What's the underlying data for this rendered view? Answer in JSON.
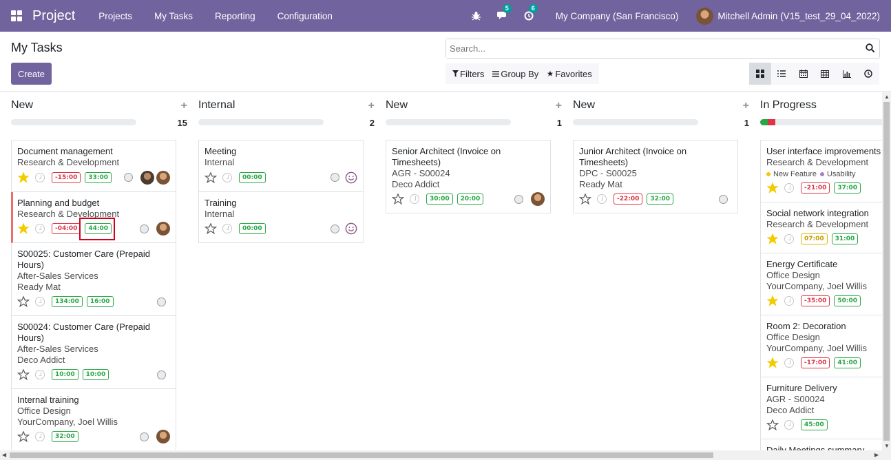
{
  "navbar": {
    "brand": "Project",
    "menu": [
      "Projects",
      "My Tasks",
      "Reporting",
      "Configuration"
    ],
    "messages_count": "5",
    "activities_count": "6",
    "company": "My Company (San Francisco)",
    "user": "Mitchell Admin (V15_test_29_04_2022)"
  },
  "control_panel": {
    "title": "My Tasks",
    "create_label": "Create",
    "search_placeholder": "Search...",
    "filters_label": "Filters",
    "groupby_label": "Group By",
    "favorites_label": "Favorites",
    "active_view": "kanban"
  },
  "columns": [
    {
      "title": "New",
      "count": "15",
      "cards": [
        {
          "title": "Document management",
          "lines": [
            "Research & Development"
          ],
          "starred": true,
          "tags": [
            {
              "t": "-15:00",
              "c": "r"
            },
            {
              "t": "33:00",
              "c": "g"
            }
          ],
          "avatars": 2
        },
        {
          "title": "Planning and budget",
          "lines": [
            "Research & Development"
          ],
          "starred": true,
          "tags": [
            {
              "t": "-04:00",
              "c": "r"
            },
            {
              "t": "44:00",
              "c": "g"
            }
          ],
          "avatars": 1,
          "red_edge": true
        },
        {
          "title": "S00025: Customer Care (Prepaid Hours)",
          "lines": [
            "After-Sales Services",
            "Ready Mat"
          ],
          "starred": false,
          "tags": [
            {
              "t": "134:00",
              "c": "g"
            },
            {
              "t": "16:00",
              "c": "g"
            }
          ],
          "avatars": 0
        },
        {
          "title": "S00024: Customer Care (Prepaid Hours)",
          "lines": [
            "After-Sales Services",
            "Deco Addict"
          ],
          "starred": false,
          "tags": [
            {
              "t": "10:00",
              "c": "g"
            },
            {
              "t": "10:00",
              "c": "g"
            }
          ],
          "avatars": 0
        },
        {
          "title": "Internal training",
          "lines": [
            "Office Design",
            "YourCompany, Joel Willis"
          ],
          "starred": false,
          "tags": [
            {
              "t": "32:00",
              "c": "g"
            }
          ],
          "avatars": 1
        }
      ]
    },
    {
      "title": "Internal",
      "count": "2",
      "cards": [
        {
          "title": "Meeting",
          "lines": [
            "Internal"
          ],
          "starred": false,
          "tags": [
            {
              "t": "00:00",
              "c": "g"
            }
          ],
          "smile": true
        },
        {
          "title": "Training",
          "lines": [
            "Internal"
          ],
          "starred": false,
          "tags": [
            {
              "t": "00:00",
              "c": "g"
            }
          ],
          "smile": true
        }
      ]
    },
    {
      "title": "New",
      "count": "1",
      "cards": [
        {
          "title": "Senior Architect (Invoice on Timesheets)",
          "lines": [
            "AGR - S00024",
            "Deco Addict"
          ],
          "starred": false,
          "tags": [
            {
              "t": "30:00",
              "c": "g"
            },
            {
              "t": "20:00",
              "c": "g"
            }
          ],
          "avatars": 1
        }
      ]
    },
    {
      "title": "New",
      "count": "1",
      "cards": [
        {
          "title": "Junior Architect (Invoice on Timesheets)",
          "lines": [
            "DPC - S00025",
            "Ready Mat"
          ],
          "starred": false,
          "tags": [
            {
              "t": "-22:00",
              "c": "r"
            },
            {
              "t": "32:00",
              "c": "g"
            }
          ],
          "avatars": 0
        }
      ]
    },
    {
      "title": "In Progress",
      "count": "",
      "progress": {
        "green": 0.06,
        "red": 0.06
      },
      "cards": [
        {
          "title": "User interface improvements",
          "lines": [
            "Research & Development"
          ],
          "labels": [
            {
              "t": "New Feature",
              "color": "#f4c609"
            },
            {
              "t": "Usability",
              "color": "#a97fc6"
            }
          ],
          "starred": true,
          "tags": [
            {
              "t": "-21:00",
              "c": "r"
            },
            {
              "t": "37:00",
              "c": "g"
            }
          ],
          "avatars": 0
        },
        {
          "title": "Social network integration",
          "lines": [
            "Research & Development"
          ],
          "starred": true,
          "tags": [
            {
              "t": "07:00",
              "c": "y"
            },
            {
              "t": "31:00",
              "c": "g"
            }
          ],
          "avatars": 0
        },
        {
          "title": "Energy Certificate",
          "lines": [
            "Office Design",
            "YourCompany, Joel Willis"
          ],
          "starred": true,
          "tags": [
            {
              "t": "-35:00",
              "c": "r"
            },
            {
              "t": "50:00",
              "c": "g"
            }
          ],
          "avatars": 0
        },
        {
          "title": "Room 2: Decoration",
          "lines": [
            "Office Design",
            "YourCompany, Joel Willis"
          ],
          "starred": true,
          "tags": [
            {
              "t": "-17:00",
              "c": "r"
            },
            {
              "t": "41:00",
              "c": "g"
            }
          ],
          "avatars": 0
        },
        {
          "title": "Furniture Delivery",
          "lines": [
            "AGR - S00024",
            "Deco Addict"
          ],
          "starred": false,
          "tags": [
            {
              "t": "45:00",
              "c": "g"
            }
          ],
          "avatars": 0
        },
        {
          "title": "Daily Meetings summary",
          "lines": [],
          "starred": false,
          "tags": [],
          "avatars": 0
        }
      ]
    }
  ]
}
